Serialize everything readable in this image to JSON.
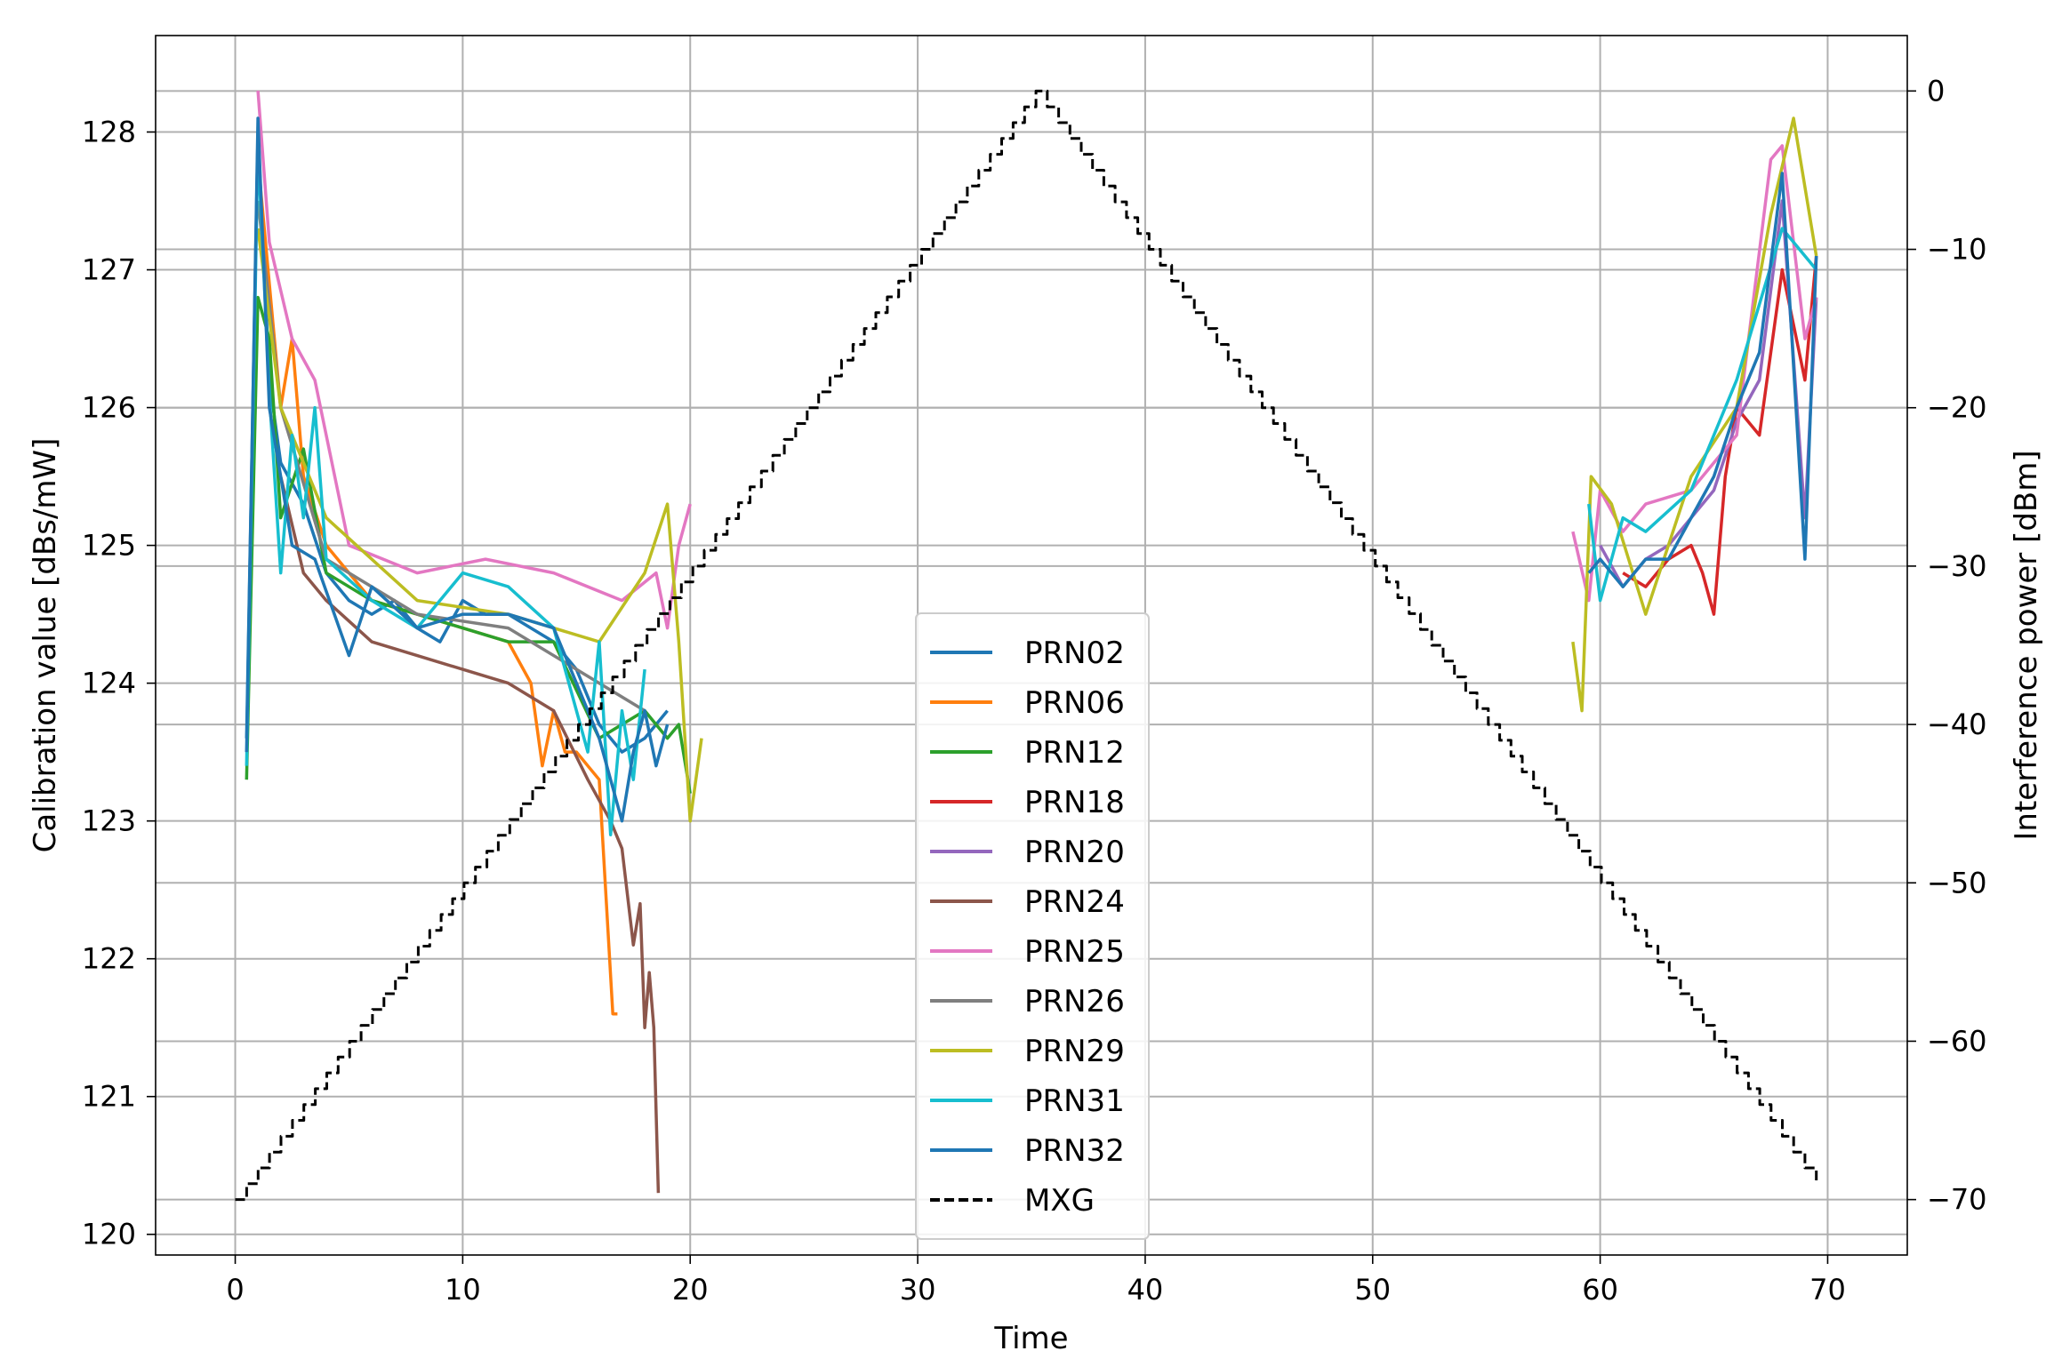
{
  "chart_data": {
    "type": "line",
    "title": "",
    "xlabel": "Time",
    "ylabel": "Calibration value [dBs/mW]",
    "y2label": "Interference power [dBm]",
    "xlim": [
      -3.5,
      73.5
    ],
    "ylim": [
      119.85,
      128.7
    ],
    "y2lim": [
      -73.5,
      3.5
    ],
    "xticks": [
      0,
      10,
      20,
      30,
      40,
      50,
      60,
      70
    ],
    "yticks": [
      120,
      121,
      122,
      123,
      124,
      125,
      126,
      127,
      128
    ],
    "y2ticks": [
      0,
      -10,
      -20,
      -30,
      -40,
      -50,
      -60,
      -70
    ],
    "y2tick_labels": [
      "0",
      "−10",
      "−20",
      "−30",
      "−40",
      "−50",
      "−60",
      "−70"
    ],
    "grid": true,
    "legend_position": "lower-center",
    "series": [
      {
        "name": "PRN02",
        "color": "#1f77b4",
        "axis": "left",
        "style": "solid",
        "x": [
          0.5,
          1.0,
          1.5,
          2.0,
          3.0,
          4.0,
          5.0,
          6.0,
          7.0,
          8.0,
          9.0,
          10.0,
          11.0,
          12.0,
          13.0,
          14.0,
          15.0,
          16.0,
          17.0,
          18.0,
          19.0
        ],
        "y": [
          123.6,
          128.0,
          126.2,
          125.6,
          125.3,
          124.8,
          124.6,
          124.5,
          124.6,
          124.4,
          124.3,
          124.6,
          124.5,
          124.5,
          124.4,
          124.3,
          124.1,
          123.7,
          123.5,
          123.6,
          123.8
        ]
      },
      {
        "name": "PRN06",
        "color": "#ff7f0e",
        "axis": "left",
        "style": "solid",
        "x": [
          1.0,
          2.0,
          2.5,
          3.0,
          4.0,
          6.0,
          8.0,
          10.0,
          12.0,
          13.0,
          13.5,
          14.0,
          14.5,
          15.0,
          16.0,
          16.6,
          16.8
        ],
        "y": [
          127.8,
          126.0,
          126.5,
          125.5,
          125.0,
          124.6,
          124.5,
          124.4,
          124.3,
          124.0,
          123.4,
          123.8,
          123.5,
          123.5,
          123.3,
          121.6,
          121.6
        ]
      },
      {
        "name": "PRN12",
        "color": "#2ca02c",
        "axis": "left",
        "style": "solid",
        "x": [
          0.5,
          1.0,
          1.5,
          2.0,
          3.0,
          4.0,
          6.0,
          8.0,
          10.0,
          12.0,
          14.0,
          16.0,
          18.0,
          19.0,
          19.5,
          20.0
        ],
        "y": [
          123.3,
          126.8,
          126.5,
          125.2,
          125.7,
          124.8,
          124.6,
          124.5,
          124.4,
          124.3,
          124.3,
          123.6,
          123.8,
          123.6,
          123.7,
          123.2
        ]
      },
      {
        "name": "PRN18",
        "color": "#d62728",
        "axis": "left",
        "style": "solid",
        "x": [
          61.0,
          62.0,
          63.0,
          64.0,
          64.5,
          65.0,
          65.5,
          66.0,
          67.0,
          68.0,
          69.0,
          69.5
        ],
        "y": [
          124.8,
          124.7,
          124.9,
          125.0,
          124.8,
          124.5,
          125.5,
          126.0,
          125.8,
          127.0,
          126.2,
          127.1
        ]
      },
      {
        "name": "PRN20",
        "color": "#9467bd",
        "axis": "left",
        "style": "solid",
        "x": [
          60.0,
          61.0,
          62.0,
          63.0,
          64.0,
          65.0,
          66.0,
          67.0,
          68.0,
          69.0,
          69.5
        ],
        "y": [
          125.0,
          124.7,
          124.9,
          125.0,
          125.2,
          125.4,
          125.9,
          126.2,
          127.5,
          125.2,
          126.8
        ]
      },
      {
        "name": "PRN24",
        "color": "#8c564b",
        "axis": "left",
        "style": "solid",
        "x": [
          2.0,
          3.0,
          4.0,
          6.0,
          8.0,
          10.0,
          12.0,
          14.0,
          15.5,
          16.5,
          17.0,
          17.5,
          17.8,
          18.0,
          18.2,
          18.4,
          18.6
        ],
        "y": [
          125.5,
          124.8,
          124.6,
          124.3,
          124.2,
          124.1,
          124.0,
          123.8,
          123.3,
          123.0,
          122.8,
          122.1,
          122.4,
          121.5,
          121.9,
          121.5,
          120.3
        ]
      },
      {
        "name": "PRN25",
        "color": "#e377c2",
        "axis": "left",
        "style": "solid",
        "x": [
          1.0,
          1.5,
          2.5,
          3.5,
          5.0,
          8.0,
          11.0,
          14.0,
          17.0,
          18.5,
          19.0,
          19.5,
          20.0,
          58.8,
          59.5,
          60.0,
          61.0,
          62.0,
          64.0,
          66.0,
          67.5,
          68.0,
          69.0,
          69.5
        ],
        "y": [
          128.3,
          127.2,
          126.5,
          126.2,
          125.0,
          124.8,
          124.9,
          124.8,
          124.6,
          124.8,
          124.4,
          125.0,
          125.3,
          125.1,
          124.6,
          125.4,
          125.1,
          125.3,
          125.4,
          125.8,
          127.8,
          127.9,
          126.5,
          126.8
        ]
      },
      {
        "name": "PRN26",
        "color": "#7f7f7f",
        "axis": "left",
        "style": "solid",
        "x": [
          1.0,
          2.0,
          4.0,
          8.0,
          12.0,
          16.0,
          18.0
        ],
        "y": [
          127.5,
          126.0,
          124.9,
          124.5,
          124.4,
          124.0,
          123.8
        ]
      },
      {
        "name": "PRN29",
        "color": "#bcbd22",
        "axis": "left",
        "style": "solid",
        "x": [
          1.0,
          2.0,
          4.0,
          8.0,
          12.0,
          16.0,
          18.0,
          19.0,
          19.5,
          20.0,
          20.5,
          58.8,
          59.2,
          59.6,
          60.5,
          62.0,
          64.0,
          66.0,
          67.5,
          68.5,
          69.5
        ],
        "y": [
          127.3,
          126.0,
          125.2,
          124.6,
          124.5,
          124.3,
          124.8,
          125.3,
          124.3,
          123.0,
          123.6,
          124.3,
          123.8,
          125.5,
          125.3,
          124.5,
          125.5,
          126.0,
          127.4,
          128.1,
          127.1
        ]
      },
      {
        "name": "PRN31",
        "color": "#17becf",
        "axis": "left",
        "style": "solid",
        "x": [
          0.5,
          1.0,
          1.5,
          2.0,
          2.5,
          3.0,
          3.5,
          4.0,
          6.0,
          8.0,
          10.0,
          12.0,
          14.0,
          15.5,
          16.0,
          16.5,
          17.0,
          17.5,
          18.0,
          59.5,
          60.0,
          61.0,
          62.0,
          64.0,
          66.0,
          68.0,
          69.5
        ],
        "y": [
          123.4,
          127.9,
          126.1,
          124.8,
          125.8,
          125.2,
          126.0,
          124.9,
          124.6,
          124.4,
          124.8,
          124.7,
          124.4,
          123.5,
          124.3,
          122.9,
          123.8,
          123.3,
          124.1,
          125.3,
          124.6,
          125.2,
          125.1,
          125.4,
          126.2,
          127.3,
          127.0
        ]
      },
      {
        "name": "PRN32",
        "color": "#1f77b4",
        "axis": "left",
        "style": "solid",
        "x": [
          0.5,
          1.0,
          1.5,
          2.5,
          3.5,
          5.0,
          6.0,
          8.0,
          10.0,
          12.0,
          14.0,
          16.0,
          17.0,
          17.5,
          18.0,
          18.5,
          19.0,
          59.5,
          60.0,
          61.0,
          62.0,
          63.0,
          64.0,
          65.0,
          66.0,
          67.0,
          68.0,
          69.0,
          69.5
        ],
        "y": [
          123.5,
          128.1,
          126.0,
          125.0,
          124.9,
          124.2,
          124.7,
          124.4,
          124.5,
          124.5,
          124.4,
          123.6,
          123.0,
          123.5,
          123.8,
          123.4,
          123.7,
          124.8,
          124.9,
          124.7,
          124.9,
          124.9,
          125.2,
          125.5,
          126.0,
          126.4,
          127.7,
          124.9,
          127.1
        ]
      },
      {
        "name": "MXG",
        "color": "#000000",
        "axis": "right",
        "style": "dashed",
        "x": [
          0.0,
          35.2,
          69.5
        ],
        "y": [
          -70.0,
          0.0,
          -69.0
        ]
      }
    ]
  }
}
